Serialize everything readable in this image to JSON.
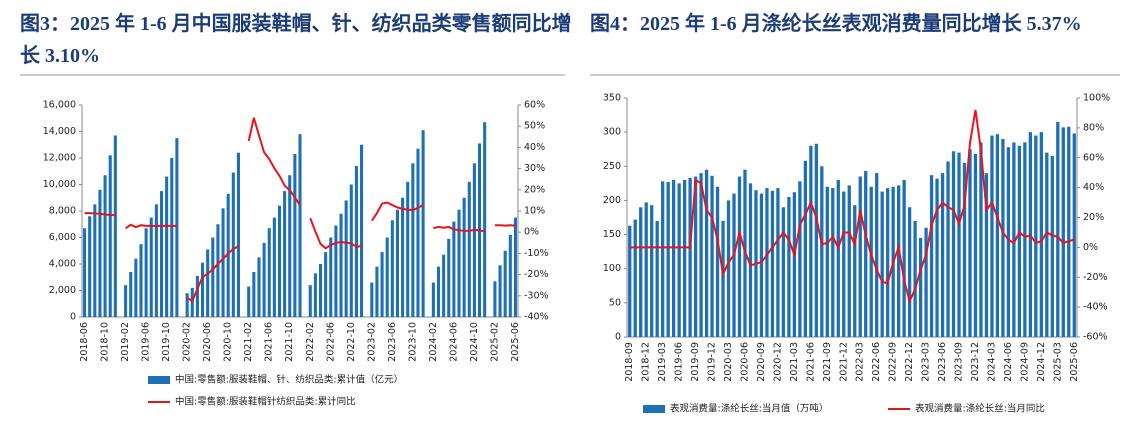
{
  "chart_data": [
    {
      "type": "combo",
      "title": "图3：2025 年 1-6 月中国服装鞋帽、针、纺织品类零售额同比增长 3.10%",
      "legend": "bottom",
      "categories": [
        "2018-06",
        null,
        null,
        null,
        "2018-10",
        null,
        null,
        null,
        "2019-02",
        null,
        null,
        null,
        "2019-06",
        null,
        null,
        null,
        "2019-10",
        null,
        null,
        null,
        "2020-02",
        null,
        null,
        null,
        "2020-06",
        null,
        null,
        null,
        "2020-10",
        null,
        null,
        null,
        "2021-02",
        null,
        null,
        null,
        "2021-06",
        null,
        null,
        null,
        "2021-10",
        null,
        null,
        null,
        "2022-02",
        null,
        null,
        null,
        "2022-06",
        null,
        null,
        null,
        "2022-10",
        null,
        null,
        null,
        "2023-02",
        null,
        null,
        null,
        "2023-06",
        null,
        null,
        null,
        "2023-10",
        null,
        null,
        null,
        "2024-02",
        null,
        null,
        null,
        "2024-06",
        null,
        null,
        null,
        "2024-10",
        null,
        null,
        null,
        "2025-02",
        null,
        null,
        null,
        "2025-06"
      ],
      "series": [
        {
          "name": "中国:零售额:服装鞋帽、针、纺织品类:累计值（亿元）",
          "type": "bar",
          "color": "#1f6fb5",
          "values": [
            6700,
            7600,
            8500,
            9600,
            10700,
            12200,
            13700,
            null,
            2400,
            3400,
            4400,
            5500,
            6700,
            7500,
            8500,
            9500,
            10600,
            12000,
            13500,
            null,
            1800,
            2200,
            3100,
            4100,
            5100,
            6000,
            7000,
            8200,
            9300,
            10900,
            12400,
            null,
            2300,
            3400,
            4500,
            5600,
            6700,
            7500,
            8400,
            9500,
            10700,
            12300,
            13800,
            null,
            2400,
            3300,
            4000,
            4900,
            6000,
            6900,
            7800,
            8800,
            10000,
            11400,
            13000,
            null,
            2600,
            3800,
            4900,
            6000,
            7300,
            8100,
            9000,
            10200,
            11600,
            12700,
            14100,
            null,
            2600,
            3800,
            4700,
            5900,
            7200,
            8100,
            9000,
            10200,
            11600,
            13100,
            14700,
            null,
            2700,
            3900,
            5000,
            6200,
            7500
          ]
        },
        {
          "name": "中国:零售额:服装鞋帽针纺织品类:累计同比",
          "type": "line",
          "axis": "y2",
          "color": "#e8141b",
          "values": [
            9,
            9,
            8.8,
            8.7,
            8.3,
            8.2,
            8,
            null,
            1.8,
            3.5,
            2.4,
            3.3,
            3,
            3,
            2.9,
            3,
            3,
            3,
            2.9,
            null,
            -30.9,
            -32.5,
            -26.7,
            -21.2,
            -19.6,
            -17.6,
            -14.9,
            -12.6,
            -10,
            -7.9,
            -6.6,
            null,
            43,
            54,
            45.7,
            37.7,
            34.5,
            30.2,
            26.6,
            22,
            19.8,
            16.5,
            12.7,
            null,
            6.6,
            0.3,
            -5.5,
            -7.6,
            -6,
            -5,
            -4.6,
            -5,
            -5.3,
            -6.9,
            -6.5,
            null,
            5.4,
            9,
            13.5,
            14,
            12.8,
            11.7,
            11,
            10.6,
            10.4,
            11.5,
            12.9,
            null,
            1.9,
            2.5,
            2.1,
            2.5,
            1.3,
            1,
            0.6,
            0.7,
            1.1,
            0.9,
            0.3,
            null,
            3.3,
            3.3,
            3.1,
            3.3,
            3.1
          ]
        }
      ],
      "ylim": [
        0,
        16000
      ],
      "yticks": [
        0,
        {
          "value": 2000,
          "label": "2,000"
        },
        {
          "value": 4000,
          "label": "4,000"
        },
        {
          "value": 6000,
          "label": "6,000"
        },
        {
          "value": 8000,
          "label": "8,000"
        },
        {
          "value": 10000,
          "label": "10,000"
        },
        {
          "value": 12000,
          "label": "12,000"
        },
        {
          "value": 14000,
          "label": "14,000"
        },
        {
          "value": 16000,
          "label": "16,000"
        }
      ],
      "y2lim": [
        -40,
        60
      ],
      "y2ticks": [
        {
          "value": -40,
          "label": "-40%"
        },
        {
          "value": -30,
          "label": "-30%"
        },
        {
          "value": -20,
          "label": "-20%"
        },
        {
          "value": -10,
          "label": "-10%"
        },
        {
          "value": 0,
          "label": "0%"
        },
        {
          "value": 10,
          "label": "10%"
        },
        {
          "value": 20,
          "label": "20%"
        },
        {
          "value": 30,
          "label": "30%"
        },
        {
          "value": 40,
          "label": "40%"
        },
        {
          "value": 50,
          "label": "50%"
        },
        {
          "value": 60,
          "label": "60%"
        }
      ],
      "grid": false
    },
    {
      "type": "combo",
      "title": "图4：2025 年 1-6 月涤纶长丝表观消费量同比增长 5.37%",
      "legend": "bottom",
      "categories": [
        "2018-09",
        null,
        null,
        "2018-12",
        null,
        null,
        "2019-03",
        null,
        null,
        "2019-06",
        null,
        null,
        "2019-09",
        null,
        null,
        "2019-12",
        null,
        null,
        "2020-03",
        null,
        null,
        "2020-06",
        null,
        null,
        "2020-09",
        null,
        null,
        "2020-12",
        null,
        null,
        "2021-03",
        null,
        null,
        "2021-06",
        null,
        null,
        "2021-09",
        null,
        null,
        "2021-12",
        null,
        null,
        "2022-03",
        null,
        null,
        "2022-06",
        null,
        null,
        "2022-09",
        null,
        null,
        "2022-12",
        null,
        null,
        "2023-03",
        null,
        null,
        "2023-06",
        null,
        null,
        "2023-09",
        null,
        null,
        "2023-12",
        null,
        null,
        "2024-03",
        null,
        null,
        "2024-06",
        null,
        null,
        "2024-09",
        null,
        null,
        "2024-12",
        null,
        null,
        "2025-03",
        null,
        null,
        "2025-06"
      ],
      "series": [
        {
          "name": "表观消费量:涤纶长丝:当月值（万吨）",
          "type": "bar",
          "color": "#1f6fb5",
          "values": [
            163,
            172,
            190,
            197,
            193,
            170,
            228,
            227,
            230,
            225,
            230,
            233,
            235,
            240,
            245,
            236,
            220,
            170,
            200,
            210,
            235,
            245,
            225,
            215,
            210,
            218,
            214,
            218,
            190,
            205,
            212,
            228,
            258,
            280,
            283,
            250,
            220,
            218,
            230,
            213,
            222,
            193,
            235,
            243,
            220,
            240,
            213,
            218,
            220,
            222,
            230,
            190,
            170,
            145,
            160,
            237,
            232,
            240,
            257,
            272,
            270,
            255,
            275,
            268,
            285,
            240,
            295,
            297,
            290,
            278,
            285,
            280,
            285,
            300,
            295,
            300,
            270,
            265,
            315,
            307,
            308,
            298
          ]
        },
        {
          "name": "表观消费量:涤纶长丝:当月同比",
          "type": "line",
          "axis": "y2",
          "color": "#e8141b",
          "values": [
            0,
            0,
            0,
            0,
            0,
            0,
            0,
            0,
            0,
            0,
            0,
            0,
            45,
            43,
            25,
            20,
            5,
            -18,
            -10,
            -5,
            10,
            -3,
            -12,
            -11,
            -10,
            -5,
            0,
            5,
            10,
            5,
            -5,
            15,
            22,
            30,
            20,
            2,
            3,
            7,
            0,
            10,
            10,
            2,
            25,
            8,
            -5,
            -15,
            -23,
            -24,
            -10,
            0,
            -22,
            -36,
            -28,
            -15,
            -5,
            15,
            25,
            30,
            27,
            25,
            16,
            28,
            70,
            92,
            65,
            25,
            30,
            20,
            10,
            5,
            3,
            10,
            7,
            8,
            3,
            4,
            10,
            8,
            7,
            3,
            4,
            5.37
          ]
        }
      ],
      "ylim": [
        0,
        350
      ],
      "yticks": [
        0,
        50,
        100,
        150,
        200,
        250,
        300,
        350
      ],
      "y2lim": [
        -60,
        100
      ],
      "y2ticks": [
        {
          "value": -60,
          "label": "-60%"
        },
        {
          "value": -40,
          "label": "-40%"
        },
        {
          "value": -20,
          "label": "-20%"
        },
        {
          "value": 0,
          "label": "0%"
        },
        {
          "value": 20,
          "label": "20%"
        },
        {
          "value": 40,
          "label": "40%"
        },
        {
          "value": 60,
          "label": "60%"
        },
        {
          "value": 80,
          "label": "80%"
        },
        {
          "value": 100,
          "label": "100%"
        }
      ],
      "grid": false
    }
  ]
}
